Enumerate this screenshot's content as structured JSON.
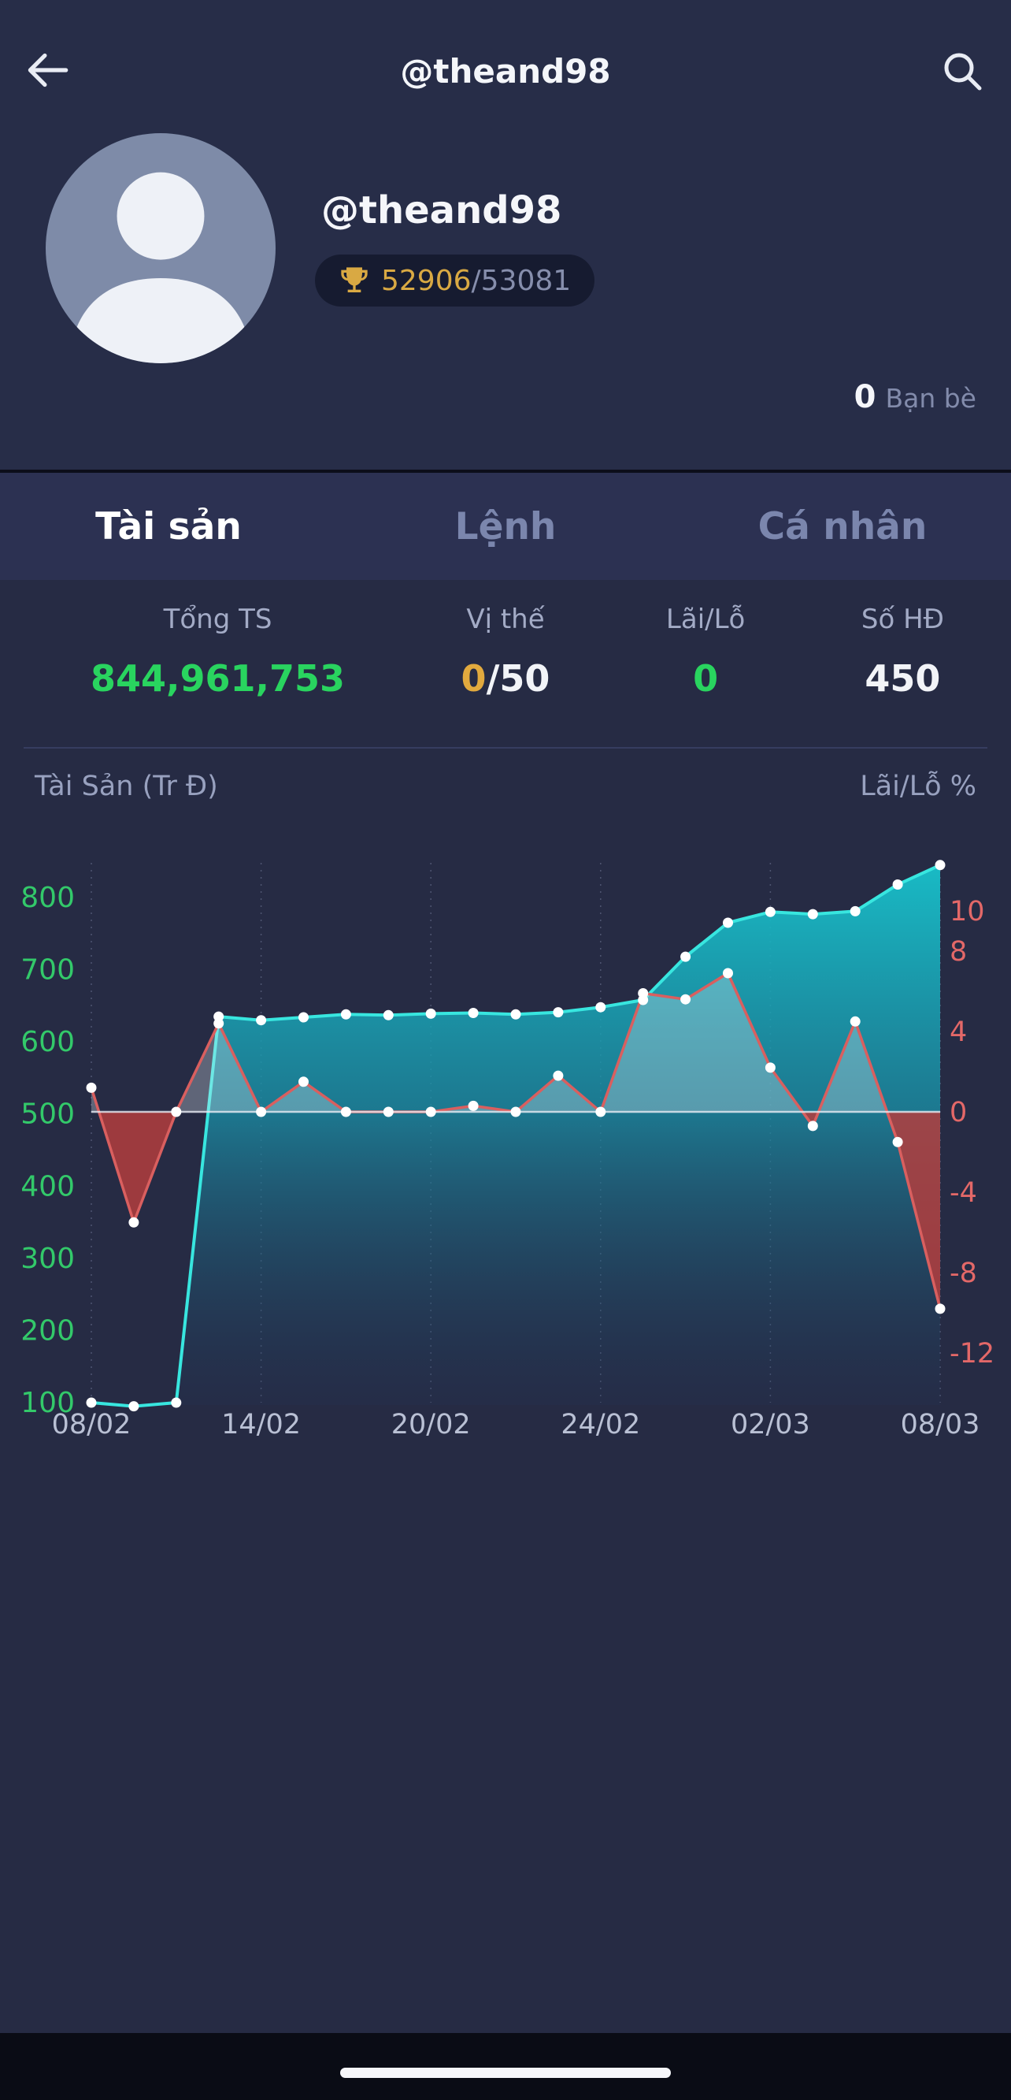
{
  "header": {
    "title": "@theand98"
  },
  "profile": {
    "username": "@theand98",
    "rank_current": "52906",
    "rank_total": "/53081",
    "friends_count": "0",
    "friends_label": "Bạn bè"
  },
  "tabs": [
    {
      "label": "Tài sản",
      "active": true
    },
    {
      "label": "Lệnh",
      "active": false
    },
    {
      "label": "Cá nhân",
      "active": false
    }
  ],
  "stats": {
    "col1": {
      "label": "Tổng TS",
      "value": "844,961,753"
    },
    "col2": {
      "label": "Vị thế",
      "value_main": "0",
      "value_suffix": "/50"
    },
    "col3": {
      "label": "Lãi/Lỗ",
      "value": "0"
    },
    "col4": {
      "label": "Số HĐ",
      "value": "450"
    }
  },
  "icons": {
    "back": "arrow-left",
    "search": "magnifier",
    "rank": "trophy",
    "avatar": "person-silhouette"
  },
  "colors": {
    "background": "#262b44",
    "panel": "#272d48",
    "tabbar": "#2c3152",
    "green": "#29d45f",
    "yellow": "#e2aa3e",
    "gold": "#d9a943",
    "cyan": "#38e6df",
    "red": "#d95f5f",
    "muted": "#a3abc6"
  },
  "chart_data": {
    "type": "line",
    "left_axis": {
      "label": "Tài Sản (Tr Đ)",
      "ticks": [
        800,
        700,
        600,
        500,
        400,
        300,
        200,
        100
      ],
      "color": "#33c96a"
    },
    "right_axis": {
      "label": "Lãi/Lỗ %",
      "ticks": [
        10,
        8,
        4,
        0,
        -4,
        -8,
        -12
      ],
      "color": "#e36868"
    },
    "x_axis": {
      "tick_labels": [
        "08/02",
        "14/02",
        "20/02",
        "24/02",
        "02/03",
        "08/03"
      ],
      "tick_indices": [
        0,
        4,
        8,
        12,
        16,
        20
      ]
    },
    "series": [
      {
        "name": "Tài Sản (Tr Đ)",
        "axis": "left",
        "style": "area",
        "color": "#38e6df",
        "values": [
          100,
          95,
          100,
          635,
          630,
          634,
          638,
          637,
          639,
          640,
          638,
          641,
          648,
          658,
          718,
          765,
          780,
          777,
          781,
          818,
          845
        ]
      },
      {
        "name": "Lãi/Lỗ %",
        "axis": "right",
        "style": "line",
        "color": "#d95f5f",
        "values": [
          1.2,
          -5.5,
          0,
          4.4,
          0,
          1.5,
          0,
          0,
          0,
          0.3,
          0,
          1.8,
          0,
          5.9,
          5.6,
          6.9,
          2.2,
          -0.7,
          4.5,
          -1.5,
          -9.8
        ]
      }
    ]
  }
}
